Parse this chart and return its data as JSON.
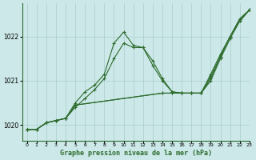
{
  "title": "Graphe pression niveau de la mer (hPa)",
  "background_color": "#cce8e8",
  "plot_bg_color": "#cce8e8",
  "grid_color": "#aacccc",
  "line_color": "#2d6b2d",
  "marker_color": "#2d6b2d",
  "xlim": [
    -0.5,
    23
  ],
  "ylim": [
    1019.65,
    1022.75
  ],
  "yticks": [
    1020,
    1021,
    1022
  ],
  "xticks": [
    0,
    1,
    2,
    3,
    4,
    5,
    6,
    7,
    8,
    9,
    10,
    11,
    12,
    13,
    14,
    15,
    16,
    17,
    18,
    19,
    20,
    21,
    22,
    23
  ],
  "series": [
    {
      "x": [
        0,
        1,
        2,
        3,
        4,
        5,
        6,
        7,
        8,
        9,
        10,
        11,
        12,
        13,
        14,
        15,
        16,
        17,
        18,
        19,
        20,
        21,
        22,
        23
      ],
      "y": [
        1019.9,
        1019.9,
        1020.05,
        1020.1,
        1020.15,
        1020.5,
        1020.75,
        1020.9,
        1021.15,
        1021.85,
        1022.1,
        1021.8,
        1021.75,
        1021.35,
        1021.0,
        1020.75,
        1020.72,
        1020.72,
        1020.72,
        1021.0,
        1021.5,
        1021.95,
        1022.35,
        1022.6
      ]
    },
    {
      "x": [
        0,
        1,
        2,
        3,
        4,
        5,
        6,
        7,
        8,
        9,
        10,
        11,
        12,
        13,
        14,
        15,
        16,
        17,
        18,
        19,
        20,
        21,
        22,
        23
      ],
      "y": [
        1019.9,
        1019.9,
        1020.05,
        1020.1,
        1020.15,
        1020.4,
        1020.6,
        1020.8,
        1021.05,
        1021.5,
        1021.85,
        1021.75,
        1021.75,
        1021.45,
        1021.05,
        1020.75,
        1020.72,
        1020.72,
        1020.72,
        1021.1,
        1021.55,
        1022.0,
        1022.35,
        1022.6
      ]
    },
    {
      "x": [
        0,
        1,
        2,
        3,
        4,
        5,
        14,
        15,
        16,
        17,
        18,
        19,
        20,
        21,
        22,
        23
      ],
      "y": [
        1019.9,
        1019.9,
        1020.05,
        1020.1,
        1020.15,
        1020.45,
        1020.72,
        1020.72,
        1020.72,
        1020.72,
        1020.72,
        1021.15,
        1021.6,
        1022.0,
        1022.4,
        1022.6
      ]
    },
    {
      "x": [
        0,
        1,
        2,
        3,
        4,
        5,
        14,
        15,
        16,
        17,
        18,
        19,
        20,
        21,
        22,
        23
      ],
      "y": [
        1019.9,
        1019.9,
        1020.05,
        1020.1,
        1020.15,
        1020.45,
        1020.72,
        1020.72,
        1020.72,
        1020.72,
        1020.72,
        1021.05,
        1021.55,
        1022.0,
        1022.4,
        1022.6
      ]
    }
  ]
}
